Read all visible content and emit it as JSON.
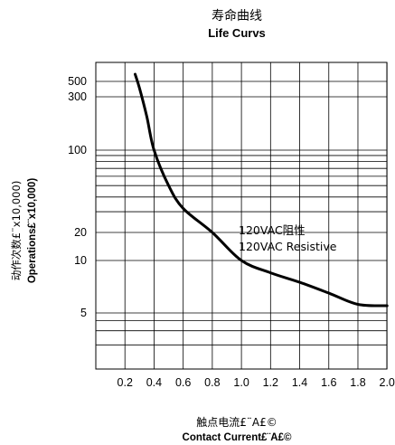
{
  "chart_data": {
    "type": "line",
    "title": "寿命曲线",
    "subtitle": "Life Curvs",
    "ylabel_cn": "动作次数£¨x10,000)",
    "ylabel_en": "Operations£¨x10,000)",
    "xlabel_cn": "触点电流£¨A£©",
    "xlabel_en": "Contact Current£¨A£©",
    "x_ticks": [
      "0.2",
      "0.4",
      "0.6",
      "0.8",
      "1.0",
      "1.2",
      "1.4",
      "1.6",
      "1.8",
      "2.0"
    ],
    "y_ticks": [
      "500",
      "300",
      "100",
      "20",
      "10",
      "5"
    ],
    "xlim": [
      0.0,
      2.0
    ],
    "grid": true,
    "annotation_line1": "120VAC阻性",
    "annotation_line2": "120VAC  Resistive",
    "series": [
      {
        "values": [
          {
            "x": 0.27,
            "y": 650
          },
          {
            "x": 0.3,
            "y": 400
          },
          {
            "x": 0.35,
            "y": 200
          },
          {
            "x": 0.4,
            "y": 100
          },
          {
            "x": 0.5,
            "y": 50
          },
          {
            "x": 0.6,
            "y": 32
          },
          {
            "x": 0.8,
            "y": 20
          },
          {
            "x": 1.0,
            "y": 10
          },
          {
            "x": 1.2,
            "y": 8.5
          },
          {
            "x": 1.4,
            "y": 7.5
          },
          {
            "x": 1.6,
            "y": 6.5
          },
          {
            "x": 1.8,
            "y": 5.6
          },
          {
            "x": 2.0,
            "y": 5.5
          }
        ]
      }
    ]
  }
}
